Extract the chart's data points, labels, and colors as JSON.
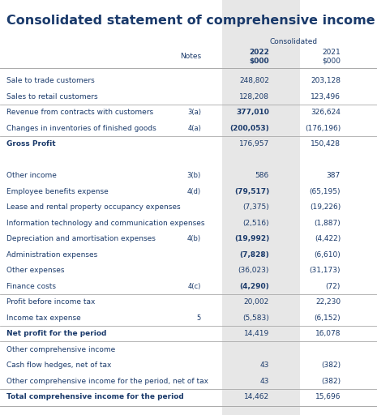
{
  "title": "Consolidated statement of comprehensive income",
  "rows": [
    {
      "label": "Sale to trade customers",
      "notes": "",
      "v2022": "248,802",
      "v2021": "203,128",
      "bold2022": false,
      "bold_label": false,
      "sep_after": false,
      "blank": false,
      "shade": true,
      "sep_before": false
    },
    {
      "label": "Sales to retail customers",
      "notes": "",
      "v2022": "128,208",
      "v2021": "123,496",
      "bold2022": false,
      "bold_label": false,
      "sep_after": true,
      "blank": false,
      "shade": true,
      "sep_before": false
    },
    {
      "label": "Revenue from contracts with customers",
      "notes": "3(a)",
      "v2022": "377,010",
      "v2021": "326,624",
      "bold2022": true,
      "bold_label": false,
      "sep_after": false,
      "blank": false,
      "shade": true,
      "sep_before": false
    },
    {
      "label": "Changes in inventories of finished goods",
      "notes": "4(a)",
      "v2022": "(200,053)",
      "v2021": "(176,196)",
      "bold2022": true,
      "bold_label": false,
      "sep_after": true,
      "blank": false,
      "shade": true,
      "sep_before": false
    },
    {
      "label": "Gross Profit",
      "notes": "",
      "v2022": "176,957",
      "v2021": "150,428",
      "bold2022": false,
      "bold_label": true,
      "sep_after": false,
      "blank": false,
      "shade": true,
      "sep_before": false
    },
    {
      "label": "",
      "notes": "",
      "v2022": "",
      "v2021": "",
      "bold2022": false,
      "bold_label": false,
      "sep_after": false,
      "blank": true,
      "shade": false,
      "sep_before": false
    },
    {
      "label": "Other income",
      "notes": "3(b)",
      "v2022": "586",
      "v2021": "387",
      "bold2022": false,
      "bold_label": false,
      "sep_after": false,
      "blank": false,
      "shade": true,
      "sep_before": false
    },
    {
      "label": "Employee benefits expense",
      "notes": "4(d)",
      "v2022": "(79,517)",
      "v2021": "(65,195)",
      "bold2022": true,
      "bold_label": false,
      "sep_after": false,
      "blank": false,
      "shade": true,
      "sep_before": false
    },
    {
      "label": "Lease and rental property occupancy expenses",
      "notes": "",
      "v2022": "(7,375)",
      "v2021": "(19,226)",
      "bold2022": false,
      "bold_label": false,
      "sep_after": false,
      "blank": false,
      "shade": true,
      "sep_before": false
    },
    {
      "label": "Information technology and communication expenses",
      "notes": "",
      "v2022": "(2,516)",
      "v2021": "(1,887)",
      "bold2022": false,
      "bold_label": false,
      "sep_after": false,
      "blank": false,
      "shade": true,
      "sep_before": false
    },
    {
      "label": "Depreciation and amortisation expenses",
      "notes": "4(b)",
      "v2022": "(19,992)",
      "v2021": "(4,422)",
      "bold2022": true,
      "bold_label": false,
      "sep_after": false,
      "blank": false,
      "shade": true,
      "sep_before": false
    },
    {
      "label": "Administration expenses",
      "notes": "",
      "v2022": "(7,828)",
      "v2021": "(6,610)",
      "bold2022": true,
      "bold_label": false,
      "sep_after": false,
      "blank": false,
      "shade": true,
      "sep_before": false
    },
    {
      "label": "Other expenses",
      "notes": "",
      "v2022": "(36,023)",
      "v2021": "(31,173)",
      "bold2022": false,
      "bold_label": false,
      "sep_after": false,
      "blank": false,
      "shade": true,
      "sep_before": false
    },
    {
      "label": "Finance costs",
      "notes": "4(c)",
      "v2022": "(4,290)",
      "v2021": "(72)",
      "bold2022": true,
      "bold_label": false,
      "sep_after": true,
      "blank": false,
      "shade": true,
      "sep_before": false
    },
    {
      "label": "Profit before income tax",
      "notes": "",
      "v2022": "20,002",
      "v2021": "22,230",
      "bold2022": false,
      "bold_label": false,
      "sep_after": false,
      "blank": false,
      "shade": true,
      "sep_before": false
    },
    {
      "label": "Income tax expense",
      "notes": "5",
      "v2022": "(5,583)",
      "v2021": "(6,152)",
      "bold2022": false,
      "bold_label": false,
      "sep_after": true,
      "blank": false,
      "shade": true,
      "sep_before": false
    },
    {
      "label": "Net profit for the period",
      "notes": "",
      "v2022": "14,419",
      "v2021": "16,078",
      "bold2022": false,
      "bold_label": true,
      "sep_after": false,
      "blank": false,
      "shade": true,
      "sep_before": false
    },
    {
      "label": "Other comprehensive income",
      "notes": "",
      "v2022": "",
      "v2021": "",
      "bold2022": false,
      "bold_label": false,
      "sep_after": false,
      "blank": false,
      "shade": false,
      "sep_before": true
    },
    {
      "label": "Cash flow hedges, net of tax",
      "notes": "",
      "v2022": "43",
      "v2021": "(382)",
      "bold2022": false,
      "bold_label": false,
      "sep_after": false,
      "blank": false,
      "shade": true,
      "sep_before": false
    },
    {
      "label": "Other comprehensive income for the period, net of tax",
      "notes": "",
      "v2022": "43",
      "v2021": "(382)",
      "bold2022": false,
      "bold_label": false,
      "sep_after": true,
      "blank": false,
      "shade": true,
      "sep_before": false
    },
    {
      "label": "Total comprehensive income for the period",
      "notes": "",
      "v2022": "14,462",
      "v2021": "15,696",
      "bold2022": false,
      "bold_label": true,
      "sep_after": false,
      "blank": false,
      "shade": true,
      "sep_before": false
    }
  ],
  "title_color": "#1a3a6b",
  "label_color": "#1a3a6b",
  "value_color": "#1a3a6b",
  "bg_color": "#ffffff",
  "shade_color": "#d0d0d0",
  "sep_color": "#aaaaaa",
  "title_fontsize": 11.5,
  "header_fontsize": 6.5,
  "row_fontsize": 6.5
}
